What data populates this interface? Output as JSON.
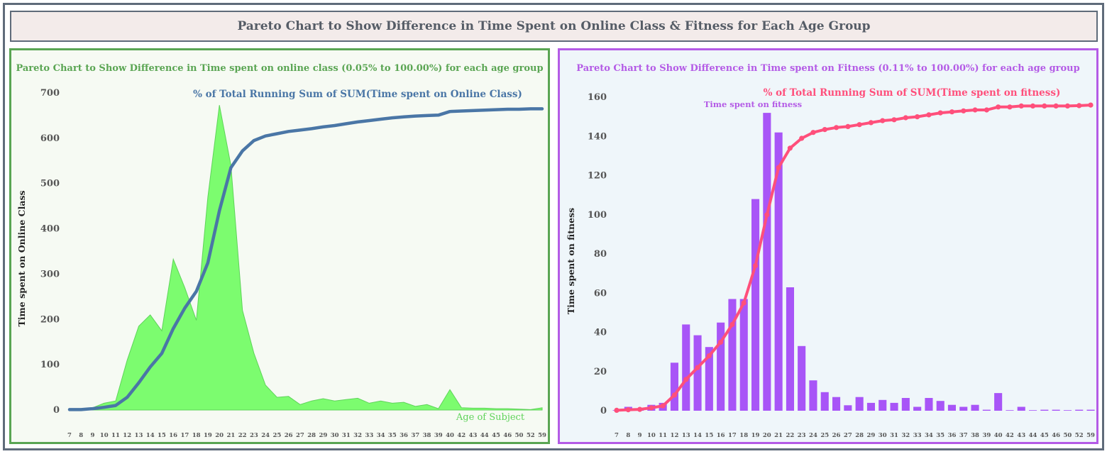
{
  "header": {
    "title": "Pareto Chart to Show Difference in Time Spent on Online Class & Fitness for Each Age Group"
  },
  "colors": {
    "online_area_fill": "#7cfc6f",
    "online_area_stroke": "#5fd35a",
    "online_line": "#4a76a6",
    "fitness_bar": "#a855f7",
    "fitness_line": "#ff4f7b",
    "left_border": "#5aa553",
    "right_border": "#b45be6"
  },
  "chart_data": [
    {
      "type": "area",
      "title": "Pareto Chart to Show Difference in Time spent on online class (0.05% to 100.00%) for each age group",
      "xlabel": "Age of Subject",
      "ylabel": "Time spent on Online Class",
      "ylim": [
        0,
        700
      ],
      "yticks": [
        0,
        100,
        200,
        300,
        400,
        500,
        600,
        700
      ],
      "categories": [
        "7",
        "8",
        "9",
        "10",
        "11",
        "12",
        "13",
        "14",
        "15",
        "16",
        "17",
        "18",
        "19",
        "20",
        "21",
        "22",
        "23",
        "24",
        "25",
        "26",
        "27",
        "28",
        "29",
        "30",
        "31",
        "32",
        "33",
        "34",
        "35",
        "36",
        "37",
        "38",
        "39",
        "40",
        "42",
        "43",
        "44",
        "45",
        "46",
        "50",
        "52",
        "59"
      ],
      "series": [
        {
          "name": "",
          "kind": "area",
          "values": [
            2,
            3,
            5,
            15,
            20,
            110,
            185,
            210,
            175,
            333,
            270,
            198,
            470,
            673,
            540,
            220,
            125,
            55,
            28,
            30,
            12,
            20,
            25,
            20,
            23,
            26,
            15,
            20,
            15,
            17,
            8,
            12,
            3,
            45,
            5,
            4,
            4,
            3,
            3,
            2,
            1,
            5
          ]
        },
        {
          "name": "% of Total Running Sum of SUM(Time spent on Online Class)",
          "kind": "line",
          "values": [
            1,
            1,
            3,
            6,
            10,
            28,
            60,
            95,
            125,
            180,
            225,
            262,
            325,
            440,
            535,
            572,
            595,
            605,
            610,
            615,
            618,
            621,
            625,
            628,
            632,
            636,
            639,
            642,
            645,
            647,
            649,
            650,
            651,
            659,
            660,
            661,
            662,
            663,
            664,
            664,
            665,
            665
          ]
        }
      ],
      "annotations": [
        "% of Total Running Sum of SUM(Time spent on Online Class)",
        "Age of Subject"
      ]
    },
    {
      "type": "bar",
      "title": "Pareto Chart to Show Difference in Time spent on Fitness (0.11% to 100.00%) for each age group",
      "xlabel": "",
      "ylabel": "Time spent on fitness",
      "ylim": [
        0,
        160
      ],
      "yticks": [
        0,
        20,
        40,
        60,
        80,
        100,
        120,
        140,
        160
      ],
      "categories": [
        "7",
        "8",
        "9",
        "10",
        "11",
        "12",
        "13",
        "14",
        "15",
        "16",
        "17",
        "18",
        "19",
        "20",
        "21",
        "22",
        "23",
        "24",
        "25",
        "26",
        "27",
        "28",
        "29",
        "30",
        "31",
        "32",
        "33",
        "34",
        "35",
        "36",
        "37",
        "38",
        "39",
        "40",
        "42",
        "43",
        "44",
        "45",
        "46",
        "50",
        "52",
        "59"
      ],
      "series": [
        {
          "name": "Time spent on fitness",
          "kind": "bar",
          "values": [
            0.3,
            2,
            1,
            3,
            4,
            24.5,
            44,
            38.5,
            32.5,
            45,
            57,
            57,
            108,
            152,
            142,
            63,
            33,
            15.5,
            9.5,
            7,
            2.8,
            7,
            4,
            5.5,
            4,
            6.5,
            2,
            6.5,
            5,
            3,
            2,
            3,
            0.5,
            9,
            0.3,
            2,
            0.3,
            0.5,
            0.5,
            0.3,
            0.5,
            0.5
          ]
        },
        {
          "name": "% of Total Running Sum of SUM(Time spent on fitness)",
          "kind": "line",
          "values": [
            0.2,
            0.5,
            0.7,
            1.5,
            2.5,
            8,
            16,
            22,
            28,
            35,
            44,
            55,
            74,
            100,
            124,
            134,
            139,
            142,
            143.5,
            144.5,
            145,
            146,
            147,
            148,
            148.5,
            149.5,
            150,
            151,
            152,
            152.5,
            153,
            153.5,
            153.5,
            155,
            155,
            155.5,
            155.5,
            155.5,
            155.5,
            155.5,
            155.7,
            156
          ]
        }
      ],
      "annotations": [
        "% of Total Running Sum of SUM(Time spent on fitness)",
        "Time spent on fitness"
      ]
    }
  ]
}
